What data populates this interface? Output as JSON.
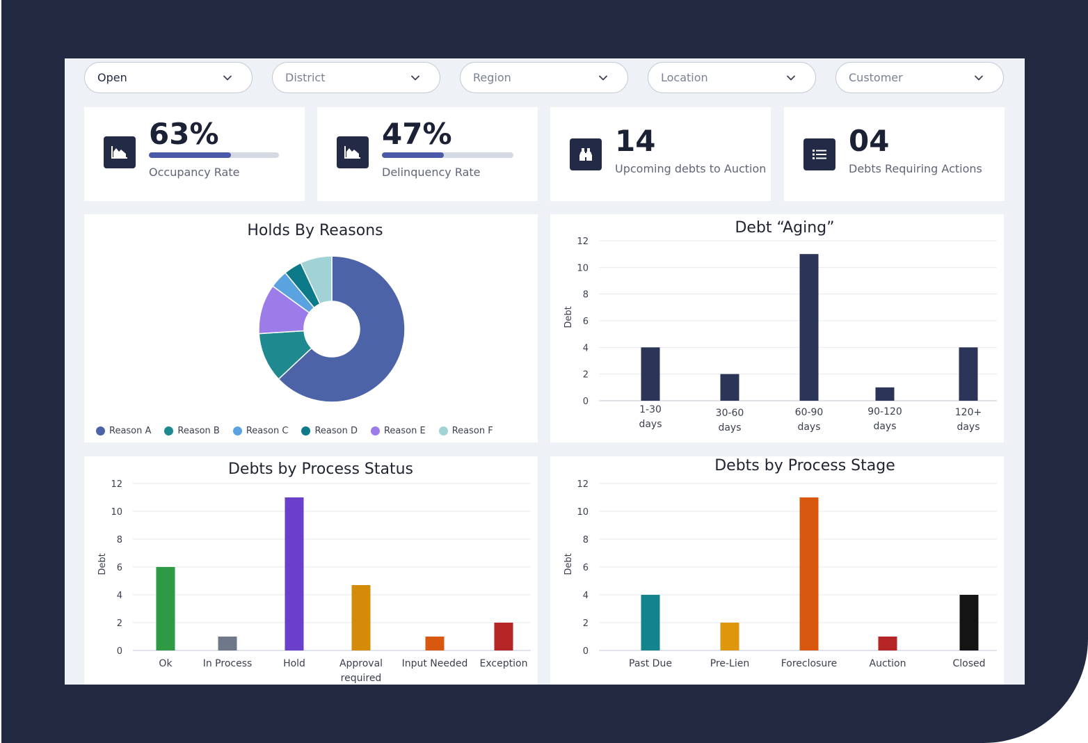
{
  "filters": [
    {
      "label": "Open",
      "selected": true
    },
    {
      "label": "District",
      "selected": false
    },
    {
      "label": "Region",
      "selected": false
    },
    {
      "label": "Location",
      "selected": false
    },
    {
      "label": "Customer",
      "selected": false
    }
  ],
  "kpis": [
    {
      "icon": "area-chart-icon",
      "value": "63%",
      "label": "Occupancy Rate",
      "progress": 0.63
    },
    {
      "icon": "area-chart-icon",
      "value": "47%",
      "label": "Delinquency Rate",
      "progress": 0.47
    },
    {
      "icon": "binoculars-icon",
      "value": "14",
      "label": "Upcoming debts to Auction"
    },
    {
      "icon": "list-icon",
      "value": "04",
      "label": "Debts Requiring Actions"
    }
  ],
  "colors": {
    "navy": "#222a45",
    "reasonA": "#4c63a8",
    "reasonB": "#1e8a8f",
    "reasonC": "#5ba3e0",
    "reasonD": "#0d7a8a",
    "reasonE": "#9b7ce8",
    "reasonF": "#a1d2d6"
  },
  "holds": {
    "title": "Holds By Reasons",
    "chart_data": {
      "type": "pie",
      "categories": [
        "Reason A",
        "Reason B",
        "Reason C",
        "Reason D",
        "Reason E",
        "Reason F"
      ],
      "values": [
        63,
        11,
        4,
        4,
        11,
        7
      ],
      "colors": [
        "#4c63a8",
        "#1e8a8f",
        "#5ba3e0",
        "#0d7a8a",
        "#9b7ce8",
        "#a1d2d6"
      ],
      "draw_order": [
        "Reason A",
        "Reason B",
        "Reason E",
        "Reason C",
        "Reason D",
        "Reason F"
      ],
      "legend": "bottom"
    }
  },
  "aging": {
    "title": "Debt “Aging”",
    "chart_data": {
      "type": "bar",
      "categories": [
        [
          "1-30",
          "days"
        ],
        [
          "30-60",
          "days"
        ],
        [
          "60-90",
          "days"
        ],
        [
          "90-120",
          "days"
        ],
        [
          "120+",
          "days"
        ]
      ],
      "values": [
        4,
        2,
        11,
        1,
        4
      ],
      "ylabel": "Debt",
      "ylim": [
        0,
        12
      ],
      "yticks": [
        0,
        2,
        4,
        6,
        8,
        10,
        12
      ],
      "grid": true,
      "colors": [
        "#2a3557",
        "#2a3557",
        "#2a3557",
        "#2a3557",
        "#2a3557"
      ]
    }
  },
  "status": {
    "title": "Debts by Process Status",
    "chart_data": {
      "type": "bar",
      "categories": [
        [
          "Ok"
        ],
        [
          "In Process"
        ],
        [
          "Hold"
        ],
        [
          "Approval",
          "required"
        ],
        [
          "Input Needed"
        ],
        [
          "Exception"
        ]
      ],
      "values": [
        6,
        1,
        11,
        4.7,
        1,
        2
      ],
      "ylabel": "Debt",
      "ylim": [
        0,
        12
      ],
      "yticks": [
        0,
        2,
        4,
        6,
        8,
        10,
        12
      ],
      "grid": true,
      "colors": [
        "#2e9a44",
        "#6e7889",
        "#6a3fc9",
        "#d48c08",
        "#d9580f",
        "#b52525"
      ]
    }
  },
  "stage": {
    "title": "Debts by Process Stage",
    "chart_data": {
      "type": "bar",
      "categories": [
        [
          "Past Due"
        ],
        [
          "Pre-Lien"
        ],
        [
          "Foreclosure"
        ],
        [
          "Auction"
        ],
        [
          "Closed"
        ]
      ],
      "values": [
        4,
        2,
        11,
        1,
        4
      ],
      "ylabel": "Debt",
      "ylim": [
        0,
        12
      ],
      "yticks": [
        0,
        2,
        4,
        6,
        8,
        10,
        12
      ],
      "grid": true,
      "colors": [
        "#13848e",
        "#de960c",
        "#d9580f",
        "#b52525",
        "#141414"
      ]
    }
  }
}
